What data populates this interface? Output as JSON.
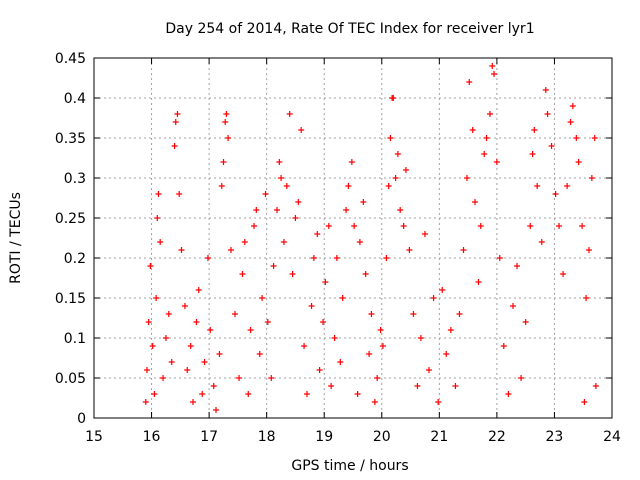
{
  "chart_data": {
    "type": "scatter",
    "title": "Day 254 of 2014, Rate Of TEC Index for receiver lyr1",
    "xlabel": "GPS time / hours",
    "ylabel": "ROTI / TECUs",
    "xlim": [
      15,
      24
    ],
    "ylim": [
      0,
      0.45
    ],
    "grid": true,
    "marker": "+",
    "color": "#ff0000",
    "x_ticks": [
      15,
      16,
      17,
      18,
      19,
      20,
      21,
      22,
      23,
      24
    ],
    "x_tick_labels": [
      "15",
      "16",
      "17",
      "18",
      "19",
      "20",
      "21",
      "22",
      "23",
      "24"
    ],
    "y_ticks": [
      0,
      0.05,
      0.1,
      0.15,
      0.2,
      0.25,
      0.3,
      0.35,
      0.4,
      0.45
    ],
    "y_tick_labels": [
      "0",
      "0.05",
      "0.1",
      "0.15",
      "0.2",
      "0.25",
      "0.3",
      "0.35",
      "0.4",
      "0.45"
    ],
    "series": [
      {
        "name": "ROTI",
        "points": [
          [
            15.9,
            0.02
          ],
          [
            15.92,
            0.06
          ],
          [
            15.95,
            0.12
          ],
          [
            15.98,
            0.19
          ],
          [
            16.02,
            0.09
          ],
          [
            16.05,
            0.03
          ],
          [
            16.08,
            0.15
          ],
          [
            16.1,
            0.25
          ],
          [
            16.12,
            0.28
          ],
          [
            16.15,
            0.22
          ],
          [
            16.2,
            0.05
          ],
          [
            16.25,
            0.1
          ],
          [
            16.3,
            0.13
          ],
          [
            16.35,
            0.07
          ],
          [
            16.4,
            0.34
          ],
          [
            16.42,
            0.37
          ],
          [
            16.45,
            0.38
          ],
          [
            16.48,
            0.28
          ],
          [
            16.52,
            0.21
          ],
          [
            16.58,
            0.14
          ],
          [
            16.62,
            0.06
          ],
          [
            16.68,
            0.09
          ],
          [
            16.72,
            0.02
          ],
          [
            16.78,
            0.12
          ],
          [
            16.82,
            0.16
          ],
          [
            16.88,
            0.03
          ],
          [
            16.92,
            0.07
          ],
          [
            16.98,
            0.2
          ],
          [
            17.02,
            0.11
          ],
          [
            17.08,
            0.04
          ],
          [
            17.12,
            0.01
          ],
          [
            17.18,
            0.08
          ],
          [
            17.22,
            0.29
          ],
          [
            17.25,
            0.32
          ],
          [
            17.28,
            0.37
          ],
          [
            17.3,
            0.38
          ],
          [
            17.33,
            0.35
          ],
          [
            17.38,
            0.21
          ],
          [
            17.45,
            0.13
          ],
          [
            17.52,
            0.05
          ],
          [
            17.58,
            0.18
          ],
          [
            17.62,
            0.22
          ],
          [
            17.68,
            0.03
          ],
          [
            17.72,
            0.11
          ],
          [
            17.78,
            0.24
          ],
          [
            17.82,
            0.26
          ],
          [
            17.88,
            0.08
          ],
          [
            17.92,
            0.15
          ],
          [
            17.98,
            0.28
          ],
          [
            18.02,
            0.12
          ],
          [
            18.08,
            0.05
          ],
          [
            18.12,
            0.19
          ],
          [
            18.18,
            0.26
          ],
          [
            18.22,
            0.32
          ],
          [
            18.25,
            0.3
          ],
          [
            18.3,
            0.22
          ],
          [
            18.35,
            0.29
          ],
          [
            18.4,
            0.38
          ],
          [
            18.45,
            0.18
          ],
          [
            18.5,
            0.25
          ],
          [
            18.55,
            0.27
          ],
          [
            18.6,
            0.36
          ],
          [
            18.65,
            0.09
          ],
          [
            18.7,
            0.03
          ],
          [
            18.78,
            0.14
          ],
          [
            18.82,
            0.2
          ],
          [
            18.88,
            0.23
          ],
          [
            18.92,
            0.06
          ],
          [
            18.98,
            0.12
          ],
          [
            19.02,
            0.17
          ],
          [
            19.08,
            0.24
          ],
          [
            19.12,
            0.04
          ],
          [
            19.18,
            0.1
          ],
          [
            19.22,
            0.2
          ],
          [
            19.28,
            0.07
          ],
          [
            19.32,
            0.15
          ],
          [
            19.38,
            0.26
          ],
          [
            19.42,
            0.29
          ],
          [
            19.48,
            0.32
          ],
          [
            19.52,
            0.24
          ],
          [
            19.58,
            0.03
          ],
          [
            19.62,
            0.22
          ],
          [
            19.68,
            0.27
          ],
          [
            19.72,
            0.18
          ],
          [
            19.78,
            0.08
          ],
          [
            19.82,
            0.13
          ],
          [
            19.88,
            0.02
          ],
          [
            19.92,
            0.05
          ],
          [
            19.98,
            0.11
          ],
          [
            20.02,
            0.09
          ],
          [
            20.08,
            0.2
          ],
          [
            20.12,
            0.29
          ],
          [
            20.15,
            0.35
          ],
          [
            20.18,
            0.4
          ],
          [
            20.2,
            0.4
          ],
          [
            20.24,
            0.3
          ],
          [
            20.28,
            0.33
          ],
          [
            20.32,
            0.26
          ],
          [
            20.38,
            0.24
          ],
          [
            20.42,
            0.31
          ],
          [
            20.48,
            0.21
          ],
          [
            20.55,
            0.13
          ],
          [
            20.62,
            0.04
          ],
          [
            20.68,
            0.1
          ],
          [
            20.75,
            0.23
          ],
          [
            20.82,
            0.06
          ],
          [
            20.9,
            0.15
          ],
          [
            20.98,
            0.02
          ],
          [
            21.05,
            0.16
          ],
          [
            21.12,
            0.08
          ],
          [
            21.2,
            0.11
          ],
          [
            21.28,
            0.04
          ],
          [
            21.35,
            0.13
          ],
          [
            21.42,
            0.21
          ],
          [
            21.48,
            0.3
          ],
          [
            21.52,
            0.42
          ],
          [
            21.58,
            0.36
          ],
          [
            21.62,
            0.27
          ],
          [
            21.68,
            0.17
          ],
          [
            21.72,
            0.24
          ],
          [
            21.78,
            0.33
          ],
          [
            21.82,
            0.35
          ],
          [
            21.88,
            0.38
          ],
          [
            21.92,
            0.44
          ],
          [
            21.95,
            0.43
          ],
          [
            22.0,
            0.32
          ],
          [
            22.05,
            0.2
          ],
          [
            22.12,
            0.09
          ],
          [
            22.2,
            0.03
          ],
          [
            22.28,
            0.14
          ],
          [
            22.35,
            0.19
          ],
          [
            22.42,
            0.05
          ],
          [
            22.5,
            0.12
          ],
          [
            22.58,
            0.24
          ],
          [
            22.62,
            0.33
          ],
          [
            22.65,
            0.36
          ],
          [
            22.7,
            0.29
          ],
          [
            22.78,
            0.22
          ],
          [
            22.85,
            0.41
          ],
          [
            22.88,
            0.38
          ],
          [
            22.95,
            0.34
          ],
          [
            23.02,
            0.28
          ],
          [
            23.08,
            0.24
          ],
          [
            23.15,
            0.18
          ],
          [
            23.22,
            0.29
          ],
          [
            23.28,
            0.37
          ],
          [
            23.32,
            0.39
          ],
          [
            23.38,
            0.35
          ],
          [
            23.42,
            0.32
          ],
          [
            23.48,
            0.24
          ],
          [
            23.52,
            0.02
          ],
          [
            23.55,
            0.15
          ],
          [
            23.6,
            0.21
          ],
          [
            23.65,
            0.3
          ],
          [
            23.7,
            0.35
          ],
          [
            23.72,
            0.04
          ]
        ]
      }
    ]
  }
}
